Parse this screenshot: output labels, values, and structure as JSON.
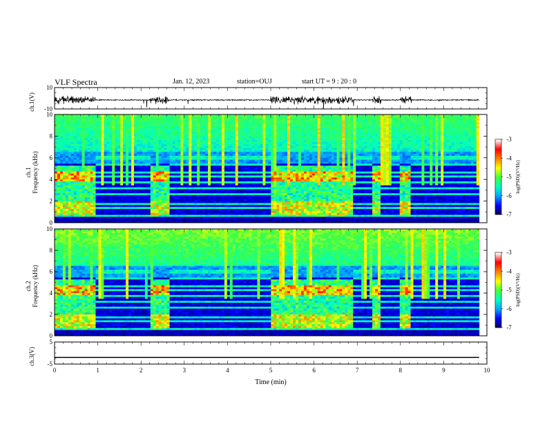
{
  "header": {
    "title": "VLF Spectra",
    "date": "Jan. 12, 2023",
    "station": "station=OUJ",
    "start": "start UT =  9 : 20 : 0"
  },
  "chart_data": {
    "type": "heatmap",
    "xlabel": "Time (min)",
    "xlim": [
      0,
      10
    ],
    "x_ticks": [
      "0",
      "1",
      "2",
      "3",
      "4",
      "5",
      "6",
      "7",
      "8",
      "9",
      "10"
    ],
    "panels": [
      {
        "ylabel": "ch.1(V)",
        "ylim": [
          -10,
          10
        ],
        "y_ticks": [
          "10",
          "-10"
        ],
        "kind": "waveform"
      },
      {
        "ylabel": "ch.1\nFrequency (kHz)",
        "ylim": [
          0,
          10
        ],
        "y_ticks": [
          "0",
          "2",
          "4",
          "6",
          "8",
          "10"
        ],
        "kind": "spectrogram"
      },
      {
        "ylabel": "ch.2\nFrequency (kHz)",
        "ylim": [
          0,
          10
        ],
        "y_ticks": [
          "0",
          "2",
          "4",
          "6",
          "8",
          "10"
        ],
        "kind": "spectrogram"
      },
      {
        "ylabel": "ch.3(V)",
        "ylim": [
          -5,
          5
        ],
        "y_ticks": [
          "5",
          "-5"
        ],
        "kind": "waveform",
        "trace_value": -2
      }
    ],
    "colorbar": {
      "label": "log(PSD)(V²/Hz)",
      "range": [
        -7,
        -3
      ],
      "ticks": [
        "-3",
        "-4",
        "-5",
        "-6",
        "-7"
      ],
      "colors": [
        "#00004d",
        "#0000ff",
        "#00a0ff",
        "#00ffc0",
        "#40ff40",
        "#ffff00",
        "#ff8000",
        "#ff0000",
        "#ffffff"
      ]
    },
    "activity_bursts_min": [
      [
        0,
        0.95
      ],
      [
        2.2,
        2.65
      ],
      [
        5.0,
        6.9
      ],
      [
        7.35,
        7.55
      ],
      [
        8.0,
        8.25
      ]
    ]
  }
}
